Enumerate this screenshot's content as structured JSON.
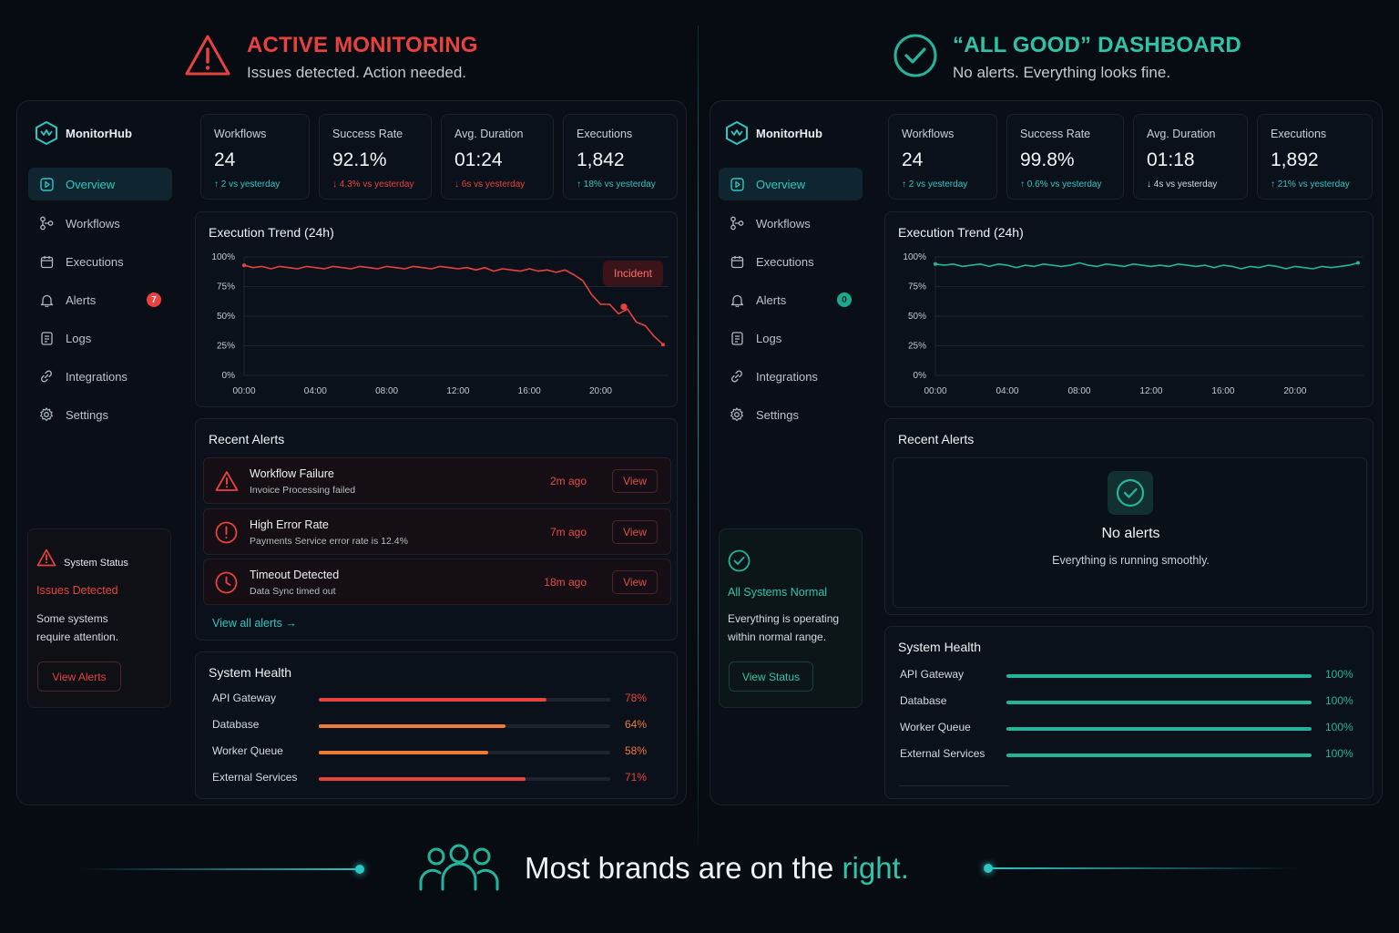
{
  "colors": {
    "alert": "#e8423f",
    "good": "#22b59a",
    "accent": "#2ec6c2",
    "orange": "#f07b37"
  },
  "left_header": {
    "title": "ACTIVE MONITORING",
    "subtitle": "Issues detected. Action needed.",
    "icon": "warning-triangle-icon"
  },
  "right_header": {
    "title": "“ALL GOOD” DASHBOARD",
    "subtitle": "No alerts. Everything looks fine.",
    "icon": "check-circle-icon"
  },
  "left": {
    "brand": "MonitorHub",
    "nav": [
      {
        "label": "Overview",
        "icon": "overview-icon"
      },
      {
        "label": "Workflows",
        "icon": "workflows-icon"
      },
      {
        "label": "Executions",
        "icon": "calendar-icon"
      },
      {
        "label": "Alerts",
        "icon": "bell-icon",
        "badge": "7"
      },
      {
        "label": "Logs",
        "icon": "document-icon"
      },
      {
        "label": "Integrations",
        "icon": "link-icon"
      },
      {
        "label": "Settings",
        "icon": "gear-icon"
      }
    ],
    "kpis": [
      {
        "label": "Workflows",
        "value": "24",
        "delta": "↑ 2 vs yesterday"
      },
      {
        "label": "Success Rate",
        "value": "92.1%",
        "delta": "↓ 4.3% vs yesterday"
      },
      {
        "label": "Avg. Duration",
        "value": "01:24",
        "delta": "↓ 6s vs yesterday"
      },
      {
        "label": "Executions",
        "value": "1,842",
        "delta": "↑ 18% vs yesterday"
      }
    ],
    "trend": {
      "title": "Execution Trend (24h)",
      "annotation": "Incident"
    },
    "alerts_title": "Recent Alerts",
    "alerts": [
      {
        "title": "Workflow Failure",
        "desc": "Invoice Processing failed",
        "time": "2m ago",
        "action": "View",
        "icon": "warning-triangle-icon"
      },
      {
        "title": "High Error Rate",
        "desc": "Payments Service error rate is 12.4%",
        "time": "7m ago",
        "action": "View",
        "icon": "exclamation-circle-icon"
      },
      {
        "title": "Timeout Detected",
        "desc": "Data Sync timed out",
        "time": "18m ago",
        "action": "View",
        "icon": "clock-icon"
      }
    ],
    "view_all": "View all alerts →",
    "health_title": "System Health",
    "health": [
      {
        "label": "API Gateway",
        "pct": "78%",
        "value": 0.78,
        "color": "#e8423f"
      },
      {
        "label": "Database",
        "pct": "64%",
        "value": 0.64,
        "color": "#f07b37"
      },
      {
        "label": "Worker Queue",
        "pct": "58%",
        "value": 0.58,
        "color": "#f07b37"
      },
      {
        "label": "External Services",
        "pct": "71%",
        "value": 0.71,
        "color": "#e8423f"
      }
    ],
    "status": {
      "label": "System Status",
      "state": "Issues Detected",
      "desc1": "Some systems",
      "desc2": "require attention.",
      "button": "View Alerts"
    }
  },
  "right": {
    "brand": "MonitorHub",
    "nav": [
      {
        "label": "Overview",
        "icon": "overview-icon"
      },
      {
        "label": "Workflows",
        "icon": "workflows-icon"
      },
      {
        "label": "Executions",
        "icon": "calendar-icon"
      },
      {
        "label": "Alerts",
        "icon": "bell-icon",
        "badge": "0"
      },
      {
        "label": "Logs",
        "icon": "document-icon"
      },
      {
        "label": "Integrations",
        "icon": "link-icon"
      },
      {
        "label": "Settings",
        "icon": "gear-icon"
      }
    ],
    "kpis": [
      {
        "label": "Workflows",
        "value": "24",
        "delta": "↑ 2 vs yesterday"
      },
      {
        "label": "Success Rate",
        "value": "99.8%",
        "delta": "↑ 0.6% vs yesterday"
      },
      {
        "label": "Avg. Duration",
        "value": "01:18",
        "delta": "↓ 4s vs yesterday"
      },
      {
        "label": "Executions",
        "value": "1,892",
        "delta": "↑ 21% vs yesterday"
      }
    ],
    "trend": {
      "title": "Execution Trend (24h)"
    },
    "alerts_title": "Recent Alerts",
    "no_alerts": {
      "title": "No alerts",
      "desc": "Everything is running smoothly."
    },
    "health_title": "System Health",
    "health": [
      {
        "label": "API Gateway",
        "pct": "100%",
        "value": 1.0
      },
      {
        "label": "Database",
        "pct": "100%",
        "value": 1.0
      },
      {
        "label": "Worker Queue",
        "pct": "100%",
        "value": 1.0
      },
      {
        "label": "External Services",
        "pct": "100%",
        "value": 1.0
      }
    ],
    "status": {
      "state": "All Systems Normal",
      "desc1": "Everything is operating",
      "desc2": "within normal range.",
      "button": "View Status"
    }
  },
  "chart_data": [
    {
      "type": "line",
      "title": "Execution Trend (24h)",
      "x_ticks": [
        "00:00",
        "04:00",
        "08:00",
        "12:00",
        "16:00",
        "20:00"
      ],
      "y_ticks": [
        "100%",
        "75%",
        "50%",
        "25%",
        "0%"
      ],
      "ylim": [
        0,
        100
      ],
      "xlim_hours": [
        0,
        23.5
      ],
      "x": [
        0,
        0.5,
        1,
        1.5,
        2,
        2.5,
        3,
        3.5,
        4,
        4.5,
        5,
        5.5,
        6,
        6.5,
        7,
        7.5,
        8,
        8.5,
        9,
        9.5,
        10,
        10.5,
        11,
        11.5,
        12,
        12.5,
        13,
        13.5,
        14,
        14.5,
        15,
        15.5,
        16,
        16.5,
        17,
        17.5,
        18,
        18.5,
        19,
        19.5,
        20,
        20.5,
        21,
        21.5,
        22,
        22.5,
        23,
        23.5
      ],
      "values": [
        93,
        91,
        92,
        90,
        92,
        91,
        90,
        92,
        91,
        90,
        92,
        91,
        90,
        92,
        91,
        90,
        92,
        91,
        90,
        92,
        91,
        90,
        92,
        91,
        90,
        91,
        89,
        91,
        88,
        90,
        89,
        88,
        90,
        88,
        89,
        87,
        89,
        85,
        80,
        68,
        60,
        60,
        52,
        56,
        45,
        42,
        33,
        26
      ],
      "incident_x": 21.3,
      "incident_y": 58,
      "grid": true,
      "color": "#e8423f"
    },
    {
      "type": "line",
      "title": "Execution Trend (24h)",
      "x_ticks": [
        "00:00",
        "04:00",
        "08:00",
        "12:00",
        "16:00",
        "20:00"
      ],
      "y_ticks": [
        "100%",
        "75%",
        "50%",
        "25%",
        "0%"
      ],
      "ylim": [
        0,
        100
      ],
      "xlim_hours": [
        0,
        23.5
      ],
      "x": [
        0,
        0.5,
        1,
        1.5,
        2,
        2.5,
        3,
        3.5,
        4,
        4.5,
        5,
        5.5,
        6,
        6.5,
        7,
        7.5,
        8,
        8.5,
        9,
        9.5,
        10,
        10.5,
        11,
        11.5,
        12,
        12.5,
        13,
        13.5,
        14,
        14.5,
        15,
        15.5,
        16,
        16.5,
        17,
        17.5,
        18,
        18.5,
        19,
        19.5,
        20,
        20.5,
        21,
        21.5,
        22,
        22.5,
        23,
        23.5
      ],
      "values": [
        94,
        93,
        94,
        92,
        93,
        94,
        92,
        94,
        93,
        91,
        93,
        92,
        94,
        93,
        92,
        93,
        95,
        93,
        92,
        94,
        93,
        92,
        94,
        93,
        92,
        93,
        92,
        94,
        93,
        92,
        93,
        91,
        93,
        92,
        90,
        92,
        91,
        93,
        92,
        90,
        92,
        91,
        90,
        92,
        91,
        92,
        93,
        95
      ],
      "grid": true,
      "color": "#22b59a"
    }
  ],
  "bottom": {
    "text_before": "Most brands are on the ",
    "highlight": "right."
  }
}
